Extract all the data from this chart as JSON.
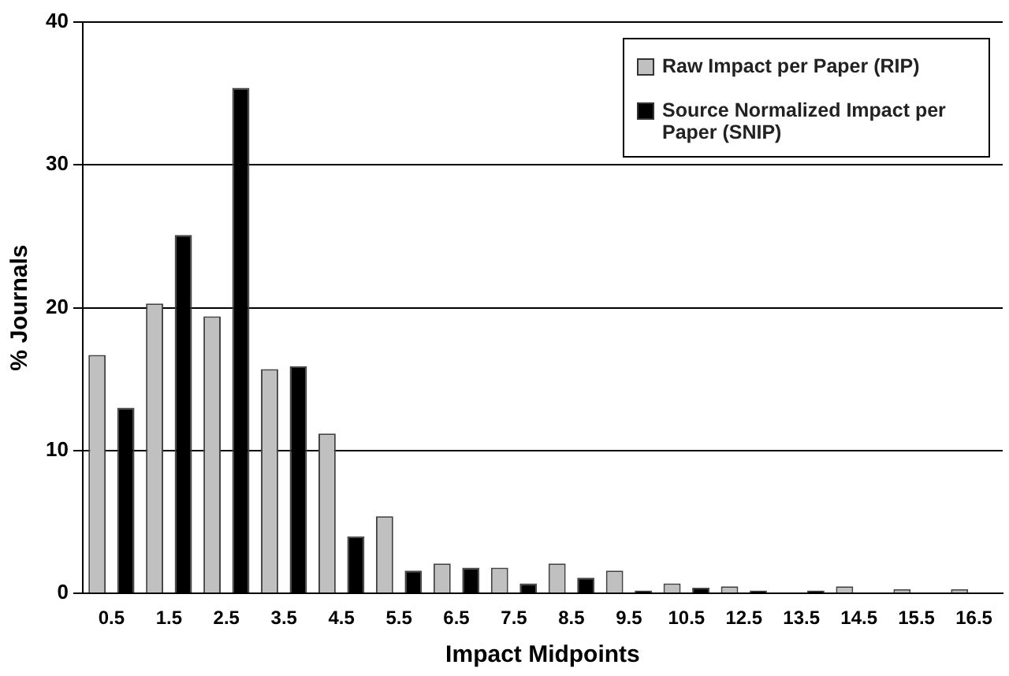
{
  "chart_data": {
    "type": "bar",
    "xlabel": "Impact Midpoints",
    "ylabel": "% Journals",
    "categories": [
      "0.5",
      "1.5",
      "2.5",
      "3.5",
      "4.5",
      "5.5",
      "6.5",
      "7.5",
      "8.5",
      "9.5",
      "10.5",
      "12.5",
      "13.5",
      "14.5",
      "15.5",
      "16.5"
    ],
    "series": [
      {
        "name": "Raw Impact per Paper (RIP)",
        "color": "#c0c0c0",
        "values": [
          16.7,
          20.3,
          19.4,
          15.7,
          11.2,
          5.4,
          2.1,
          1.8,
          2.1,
          1.6,
          0.7,
          0.5,
          0,
          0.5,
          0.3,
          0.3
        ]
      },
      {
        "name": "Source Normalized Impact per Paper (SNIP)",
        "color": "#000000",
        "values": [
          13.0,
          25.1,
          35.4,
          15.9,
          4.0,
          1.6,
          1.8,
          0.7,
          1.1,
          0.2,
          0.4,
          0.2,
          0.2,
          0,
          0,
          0
        ]
      }
    ],
    "ylim": [
      0,
      40
    ],
    "yticks": [
      0,
      10,
      20,
      30,
      40
    ],
    "grid": "y",
    "legend": "top right"
  }
}
